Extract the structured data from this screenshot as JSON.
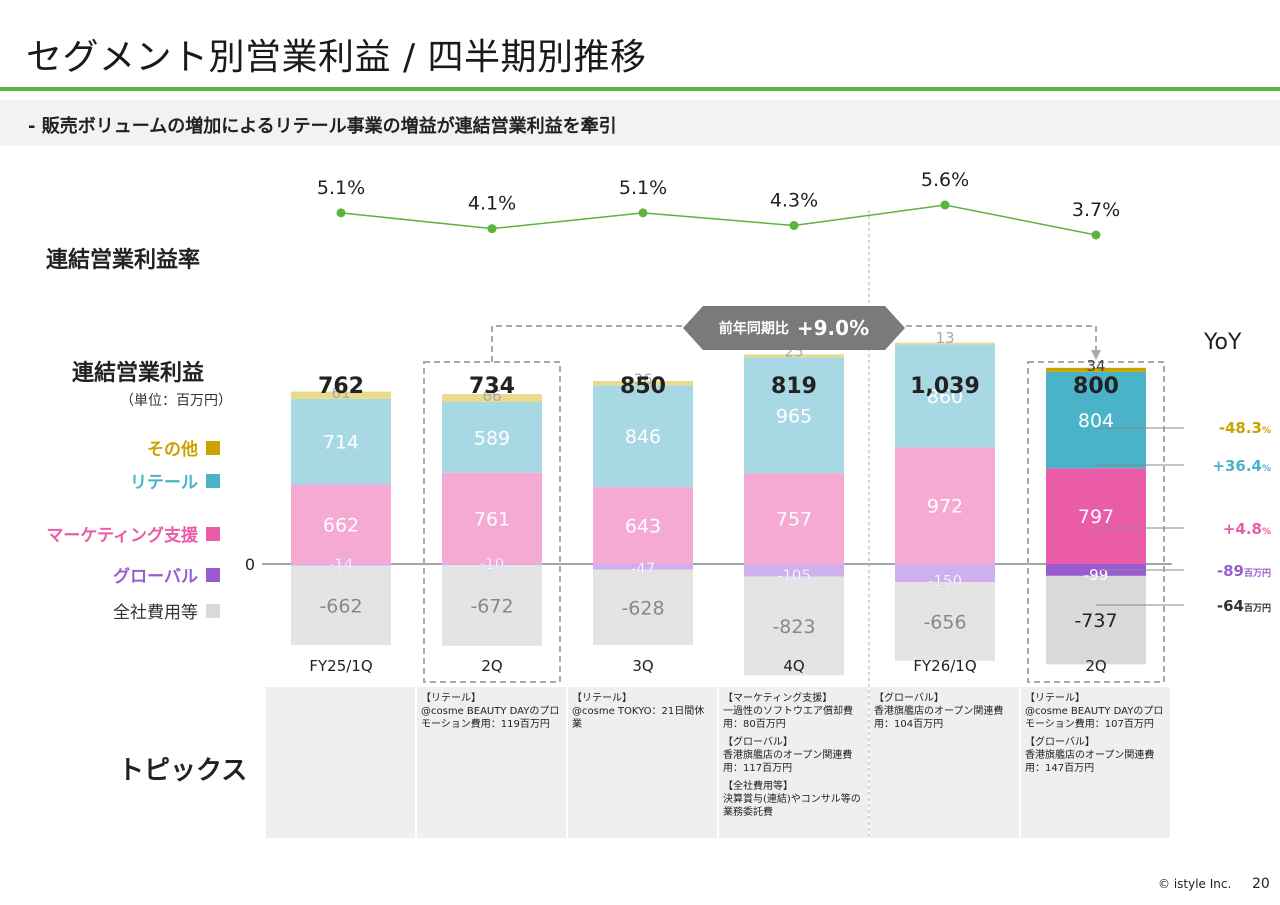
{
  "header": {
    "title": "セグメント別営業利益 / 四半期別推移",
    "subtitle": "- 販売ボリュームの増加によるリテール事業の増益が連結営業利益を牽引"
  },
  "labels": {
    "margin_row": "連結営業利益率",
    "op_row": "連結営業利益",
    "unit": "（単位：百万円）",
    "zero": "0",
    "topics_row": "トピックス",
    "yoy_head": "YoY"
  },
  "legend": [
    {
      "label": "その他",
      "color": "#c9a400"
    },
    {
      "label": "リテール",
      "color": "#4ab3c9"
    },
    {
      "label": "マーケティング支援",
      "color": "#ea5ba8"
    },
    {
      "label": "グローバル",
      "color": "#9a5bd0"
    },
    {
      "label": "全社費用等",
      "color": "#d9d9d9"
    }
  ],
  "yoy_badge": {
    "label": "前年同期比",
    "value": "+9.0%"
  },
  "yoy": [
    {
      "value": "-48.3",
      "suffix": "%",
      "color": "#c9a400"
    },
    {
      "value": "+36.4",
      "suffix": "%",
      "color": "#4ab3c9"
    },
    {
      "value": "+4.8",
      "suffix": "%",
      "color": "#ea5ba8"
    },
    {
      "value": "-89",
      "suffix": "百万円",
      "color": "#9a5bd0"
    },
    {
      "value": "-64",
      "suffix": "百万円",
      "color": "#333333"
    }
  ],
  "chart_data": [
    {
      "type": "line",
      "categories": [
        "FY25/1Q",
        "2Q",
        "3Q",
        "4Q",
        "FY26/1Q",
        "2Q"
      ],
      "series": [
        {
          "values": [
            5.1,
            4.1,
            5.1,
            4.3,
            5.6,
            3.7
          ]
        }
      ],
      "data_labels": [
        "5.1%",
        "4.1%",
        "5.1%",
        "4.3%",
        "5.6%",
        "3.7%"
      ],
      "color": "#5db33f"
    },
    {
      "type": "bar",
      "stacked": true,
      "categories": [
        "FY25/1Q",
        "2Q",
        "3Q",
        "4Q",
        "FY26/1Q",
        "2Q"
      ],
      "totals": [
        "762",
        "734",
        "850",
        "819",
        "1,039",
        "800"
      ],
      "series": [
        {
          "name": "その他",
          "values": [
            61,
            66,
            36,
            25,
            13,
            34
          ]
        },
        {
          "name": "リテール",
          "values": [
            714,
            589,
            846,
            965,
            860,
            804
          ]
        },
        {
          "name": "マーケティング支援",
          "values": [
            662,
            761,
            643,
            757,
            972,
            797
          ]
        },
        {
          "name": "グローバル",
          "values": [
            -14,
            -10,
            -47,
            -105,
            -150,
            -99
          ]
        },
        {
          "name": "全社費用等",
          "values": [
            -662,
            -672,
            -628,
            -823,
            -656,
            -737
          ]
        }
      ],
      "colors_muted": [
        "#e8dc8c",
        "#a8d8e4",
        "#f5aad4",
        "#cfb0ec",
        "#e4e4e4"
      ],
      "colors_bold": [
        "#c9a400",
        "#4ab3c9",
        "#ea5ba8",
        "#9a5bd0",
        "#d9d9d9"
      ]
    }
  ],
  "topics": [
    [],
    [
      {
        "head": "【リテール】",
        "body": "@cosme BEAUTY DAYのプロモーション費用：119百万円"
      }
    ],
    [
      {
        "head": "【リテール】",
        "body": "@cosme TOKYO：21日間休業"
      }
    ],
    [
      {
        "head": "【マーケティング支援】",
        "body": "一過性のソフトウエア償却費用：80百万円"
      },
      {
        "head": "【グローバル】",
        "body": "香港旗艦店のオープン関連費用：117百万円"
      },
      {
        "head": "【全社費用等】",
        "body": "決算賞与(連結)やコンサル等の業務委託費"
      }
    ],
    [
      {
        "head": "【グローバル】",
        "body": "香港旗艦店のオープン関連費用：104百万円"
      }
    ],
    [
      {
        "head": "【リテール】",
        "body": "@cosme BEAUTY DAYのプロモーション費用：107百万円"
      },
      {
        "head": "【グローバル】",
        "body": "香港旗艦店のオープン関連費用：147百万円"
      }
    ]
  ],
  "footer": {
    "copyright": "© istyle Inc.",
    "page": "20"
  }
}
